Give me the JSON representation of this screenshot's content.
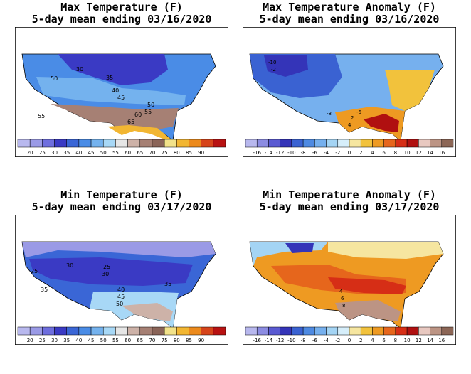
{
  "panels": [
    {
      "title_line1": "Max Temperature (F)",
      "title_line2": "5-day mean ending 03/16/2020",
      "kind": "abs",
      "legend_colors": [
        "#b8b8ee",
        "#9a9ae6",
        "#6e6ede",
        "#3a3ac4",
        "#3a66d6",
        "#4a8ce6",
        "#74b2ee",
        "#a8d8f6",
        "#e6e6e6",
        "#cdb2a8",
        "#a68074",
        "#8a6458",
        "#f2e28a",
        "#f2b632",
        "#ec8a1c",
        "#d6441a",
        "#b81212"
      ],
      "legend_labels": [
        "20",
        "25",
        "30",
        "35",
        "40",
        "45",
        "50",
        "55",
        "60",
        "65",
        "70",
        "75",
        "80",
        "85",
        "90"
      ],
      "contour_labels": [
        {
          "text": "50",
          "ref": "a"
        },
        {
          "text": "30",
          "ref": "b"
        },
        {
          "text": "35",
          "ref": "c"
        },
        {
          "text": "40",
          "ref": "d"
        },
        {
          "text": "45",
          "ref": "e"
        },
        {
          "text": "50",
          "ref": "f"
        },
        {
          "text": "55",
          "ref": "g"
        },
        {
          "text": "60",
          "ref": "h"
        },
        {
          "text": "65",
          "ref": "i"
        },
        {
          "text": "55",
          "ref": "j"
        }
      ]
    },
    {
      "title_line1": "Max Temperature Anomaly (F)",
      "title_line2": "5-day mean ending 03/16/2020",
      "kind": "anom",
      "legend_colors": [
        "#b8b8ee",
        "#8c8ce2",
        "#5a5ad2",
        "#3434b8",
        "#3a62d2",
        "#4e8ae2",
        "#76b0ee",
        "#a4d4f4",
        "#d6eefa",
        "#f6e6a0",
        "#f2c23c",
        "#ee9a22",
        "#e6661c",
        "#d62e16",
        "#b01010",
        "#e8c8c0",
        "#bc9484",
        "#8c6656"
      ],
      "legend_labels": [
        "-16",
        "-14",
        "-12",
        "-10",
        "-8",
        "-6",
        "-4",
        "-2",
        "0",
        "2",
        "4",
        "6",
        "8",
        "10",
        "12",
        "14",
        "16"
      ],
      "contour_labels": [
        {
          "text": "-10",
          "ref": "a"
        },
        {
          "text": "-2",
          "ref": "b"
        },
        {
          "text": "-8",
          "ref": "c"
        },
        {
          "text": "-6",
          "ref": "d"
        },
        {
          "text": "2",
          "ref": "e"
        },
        {
          "text": "4",
          "ref": "f"
        }
      ]
    },
    {
      "title_line1": "Min Temperature (F)",
      "title_line2": "5-day mean ending 03/17/2020",
      "kind": "abs",
      "legend_colors": [
        "#b8b8ee",
        "#9a9ae6",
        "#6e6ede",
        "#3a3ac4",
        "#3a66d6",
        "#4a8ce6",
        "#74b2ee",
        "#a8d8f6",
        "#e6e6e6",
        "#cdb2a8",
        "#a68074",
        "#8a6458",
        "#f2e28a",
        "#f2b632",
        "#ec8a1c",
        "#d6441a",
        "#b81212"
      ],
      "legend_labels": [
        "20",
        "25",
        "30",
        "35",
        "40",
        "45",
        "50",
        "55",
        "60",
        "65",
        "70",
        "75",
        "80",
        "85",
        "90"
      ],
      "contour_labels": [
        {
          "text": "25",
          "ref": "a"
        },
        {
          "text": "30",
          "ref": "b"
        },
        {
          "text": "25",
          "ref": "c"
        },
        {
          "text": "30",
          "ref": "d"
        },
        {
          "text": "35",
          "ref": "e"
        },
        {
          "text": "40",
          "ref": "f"
        },
        {
          "text": "45",
          "ref": "g"
        },
        {
          "text": "50",
          "ref": "h"
        },
        {
          "text": "35",
          "ref": "i"
        }
      ]
    },
    {
      "title_line1": "Min Temperature Anomaly (F)",
      "title_line2": "5-day mean ending 03/17/2020",
      "kind": "anom",
      "legend_colors": [
        "#b8b8ee",
        "#8c8ce2",
        "#5a5ad2",
        "#3434b8",
        "#3a62d2",
        "#4e8ae2",
        "#76b0ee",
        "#a4d4f4",
        "#d6eefa",
        "#f6e6a0",
        "#f2c23c",
        "#ee9a22",
        "#e6661c",
        "#d62e16",
        "#b01010",
        "#e8c8c0",
        "#bc9484",
        "#8c6656"
      ],
      "legend_labels": [
        "-16",
        "-14",
        "-12",
        "-10",
        "-8",
        "-6",
        "-4",
        "-2",
        "0",
        "2",
        "4",
        "6",
        "8",
        "10",
        "12",
        "14",
        "16"
      ],
      "contour_labels": [
        {
          "text": "4",
          "ref": "a"
        },
        {
          "text": "6",
          "ref": "b"
        },
        {
          "text": "8",
          "ref": "c"
        }
      ]
    }
  ]
}
